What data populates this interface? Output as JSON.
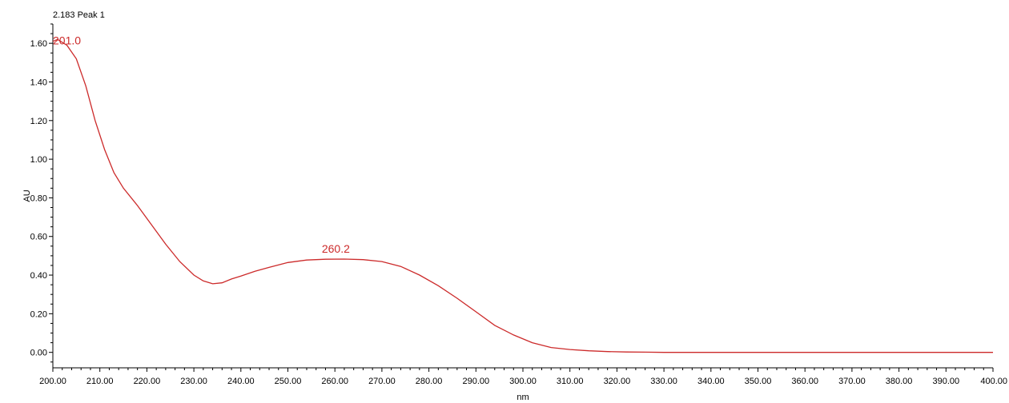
{
  "header": {
    "title": "2.183 Peak 1"
  },
  "chart_data": {
    "type": "line",
    "title": "2.183 Peak 1",
    "xlabel": "nm",
    "ylabel": "AU",
    "xlim": [
      200,
      400
    ],
    "ylim": [
      -0.08,
      1.7
    ],
    "x_ticks": [
      200,
      210,
      220,
      230,
      240,
      250,
      260,
      270,
      280,
      290,
      300,
      310,
      320,
      330,
      340,
      350,
      360,
      370,
      380,
      390,
      400
    ],
    "x_tick_labels": [
      "200.00",
      "210.00",
      "220.00",
      "230.00",
      "240.00",
      "250.00",
      "260.00",
      "270.00",
      "280.00",
      "290.00",
      "300.00",
      "310.00",
      "320.00",
      "330.00",
      "340.00",
      "350.00",
      "360.00",
      "370.00",
      "380.00",
      "390.00",
      "400.00"
    ],
    "y_ticks": [
      0,
      0.2,
      0.4,
      0.6,
      0.8,
      1.0,
      1.2,
      1.4,
      1.6
    ],
    "y_tick_labels": [
      "0.00",
      "0.20",
      "0.40",
      "0.60",
      "0.80",
      "1.00",
      "1.20",
      "1.40",
      "1.60"
    ],
    "grid": false,
    "line_color": "#cc2a2a",
    "series": [
      {
        "x": [
          200,
          201,
          203,
          205,
          207,
          209,
          211,
          213,
          215,
          218,
          221,
          224,
          227,
          230,
          232,
          234,
          236,
          238,
          240,
          243,
          246,
          250,
          254,
          258,
          262,
          266,
          270,
          274,
          278,
          282,
          286,
          290,
          294,
          298,
          302,
          306,
          310,
          314,
          318,
          322,
          326,
          330,
          340,
          350,
          360,
          370,
          380,
          390,
          400
        ],
        "y": [
          1.61,
          1.62,
          1.59,
          1.52,
          1.38,
          1.2,
          1.05,
          0.93,
          0.85,
          0.76,
          0.66,
          0.56,
          0.47,
          0.4,
          0.37,
          0.355,
          0.36,
          0.38,
          0.395,
          0.42,
          0.44,
          0.465,
          0.478,
          0.482,
          0.483,
          0.48,
          0.47,
          0.445,
          0.4,
          0.345,
          0.28,
          0.21,
          0.14,
          0.09,
          0.05,
          0.025,
          0.015,
          0.008,
          0.004,
          0.002,
          0.001,
          0.0,
          0.0,
          0.0,
          0.0,
          0.0,
          0.0,
          0.0,
          0.0
        ]
      }
    ],
    "annotations": [
      {
        "text": "201.0",
        "x": 201.0,
        "y": 1.62
      },
      {
        "text": "260.2",
        "x": 260.2,
        "y": 0.483
      }
    ]
  }
}
